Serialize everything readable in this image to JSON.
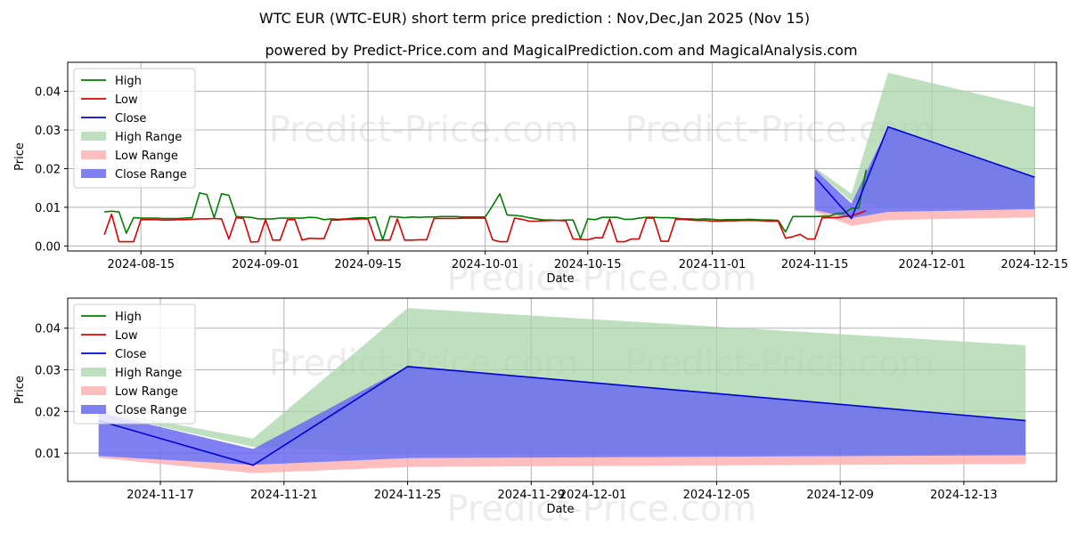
{
  "title": "WTC EUR (WTC-EUR) short term price prediction : Nov,Dec,Jan 2025 (Nov 15)",
  "subtitle": "powered by Predict-Price.com and MagicalPrediction.com and MagicalAnalysis.com",
  "watermark": "Predict-Price.com",
  "colors": {
    "high": "#008000",
    "low": "#dd0000",
    "close": "#0000dd",
    "high_range": "#a8d5a8",
    "low_range": "#ffb3b3",
    "close_range": "#6a6af0",
    "grid": "#b0b0b0"
  },
  "legend": [
    "High",
    "Low",
    "Close",
    "High Range",
    "Low Range",
    "Close Range"
  ],
  "chart_data": [
    {
      "type": "line",
      "panel": "top",
      "xlabel": "Date",
      "ylabel": "Price",
      "xlim": [
        "2024-08-05",
        "2024-12-18"
      ],
      "ylim": [
        -0.0013,
        0.0475
      ],
      "yticks": [
        0.0,
        0.01,
        0.02,
        0.03,
        0.04
      ],
      "ytick_labels": [
        "0.00",
        "0.01",
        "0.02",
        "0.03",
        "0.04"
      ],
      "xticks": [
        "2024-08-15",
        "2024-09-01",
        "2024-09-15",
        "2024-10-01",
        "2024-10-15",
        "2024-11-01",
        "2024-11-15",
        "2024-12-01",
        "2024-12-15"
      ],
      "xtick_labels": [
        "2024-08-15",
        "2024-09-01",
        "2024-09-15",
        "2024-10-01",
        "2024-10-15",
        "2024-11-01",
        "2024-11-15",
        "2024-12-01",
        "2024-12-15"
      ],
      "history": {
        "start": "2024-08-10",
        "high": [
          0.0088,
          0.009,
          0.0088,
          0.0033,
          0.0073,
          0.0072,
          0.0072,
          0.0072,
          0.0071,
          0.0071,
          0.0071,
          0.0072,
          0.0073,
          0.0137,
          0.0133,
          0.0073,
          0.0135,
          0.0131,
          0.0076,
          0.0075,
          0.0074,
          0.007,
          0.007,
          0.007,
          0.0072,
          0.0072,
          0.0072,
          0.0072,
          0.0074,
          0.0073,
          0.0068,
          0.007,
          0.0069,
          0.007,
          0.0072,
          0.0073,
          0.0072,
          0.0075,
          0.0016,
          0.0076,
          0.0075,
          0.0073,
          0.0075,
          0.0074,
          0.0075,
          0.0075,
          0.0076,
          0.0076,
          0.0076,
          0.0075,
          0.0075,
          0.0075,
          0.0075,
          0.0104,
          0.0135,
          0.008,
          0.0079,
          0.0077,
          0.0073,
          0.007,
          0.0067,
          0.0067,
          0.0066,
          0.0067,
          0.0067,
          0.0019,
          0.007,
          0.0068,
          0.0074,
          0.0074,
          0.0074,
          0.0069,
          0.0069,
          0.0072,
          0.0074,
          0.0074,
          0.0073,
          0.0073,
          0.0072,
          0.007,
          0.007,
          0.0069,
          0.007,
          0.0069,
          0.0067,
          0.0068,
          0.0068,
          0.0068,
          0.0069,
          0.0068,
          0.0067,
          0.0067,
          0.0066,
          0.0036,
          0.0076,
          0.0076,
          0.0076,
          0.0076,
          0.0077,
          0.0077,
          0.0084,
          0.0085,
          0.0097,
          0.0098,
          0.0197
        ],
        "low": [
          0.0029,
          0.0082,
          0.0011,
          0.0011,
          0.0011,
          0.0068,
          0.0068,
          0.0068,
          0.0067,
          0.0067,
          0.0068,
          0.0068,
          0.0069,
          0.007,
          0.007,
          0.0071,
          0.007,
          0.0018,
          0.0073,
          0.0071,
          0.001,
          0.0011,
          0.0068,
          0.0015,
          0.0015,
          0.0068,
          0.0068,
          0.0015,
          0.002,
          0.0019,
          0.0019,
          0.0067,
          0.0067,
          0.0069,
          0.0069,
          0.007,
          0.007,
          0.0015,
          0.0015,
          0.0015,
          0.007,
          0.0015,
          0.0015,
          0.0016,
          0.0016,
          0.0071,
          0.0071,
          0.0071,
          0.0071,
          0.0072,
          0.0072,
          0.0072,
          0.0072,
          0.0016,
          0.0011,
          0.0011,
          0.0072,
          0.0069,
          0.0064,
          0.0064,
          0.0065,
          0.0066,
          0.0066,
          0.0065,
          0.0018,
          0.0017,
          0.0016,
          0.0021,
          0.0021,
          0.007,
          0.0011,
          0.0011,
          0.0018,
          0.0018,
          0.0072,
          0.0072,
          0.0012,
          0.0012,
          0.0069,
          0.0069,
          0.0067,
          0.0066,
          0.0066,
          0.0064,
          0.0064,
          0.0065,
          0.0065,
          0.0066,
          0.0066,
          0.0066,
          0.0065,
          0.0064,
          0.0064,
          0.002,
          0.0024,
          0.003,
          0.0018,
          0.0018,
          0.0073,
          0.0073,
          0.0073,
          0.0076,
          0.0078,
          0.0084,
          0.0091
        ]
      },
      "forecast_dates": [
        "2024-11-15",
        "2024-11-20",
        "2024-11-25",
        "2024-12-15"
      ],
      "high_range_upper": [
        0.0203,
        0.0135,
        0.0448,
        0.0359
      ],
      "high_range_lower": [
        0.0197,
        0.0115,
        0.0098,
        0.0098
      ],
      "close_range_upper": [
        0.0198,
        0.011,
        0.0308,
        0.0178
      ],
      "close_range_lower": [
        0.0093,
        0.0072,
        0.0088,
        0.0095
      ],
      "low_range_upper": [
        0.0093,
        0.0072,
        0.0088,
        0.0095
      ],
      "low_range_lower": [
        0.0089,
        0.0052,
        0.0067,
        0.0074
      ],
      "close": [
        0.0178,
        0.0071,
        0.0308,
        0.0178
      ]
    },
    {
      "type": "line",
      "panel": "bottom",
      "xlabel": "Date",
      "ylabel": "Price",
      "xlim": [
        "2024-11-14",
        "2024-12-16"
      ],
      "ylim": [
        0.0032,
        0.0472
      ],
      "yticks": [
        0.01,
        0.02,
        0.03,
        0.04
      ],
      "ytick_labels": [
        "0.01",
        "0.02",
        "0.03",
        "0.04"
      ],
      "xticks": [
        "2024-11-17",
        "2024-11-21",
        "2024-11-25",
        "2024-11-29",
        "2024-12-01",
        "2024-12-05",
        "2024-12-09",
        "2024-12-13"
      ],
      "xtick_labels": [
        "2024-11-17",
        "2024-11-21",
        "2024-11-25",
        "2024-11-29",
        "2024-12-01",
        "2024-12-05",
        "2024-12-09",
        "2024-12-13"
      ],
      "forecast_dates": [
        "2024-11-15",
        "2024-11-20",
        "2024-11-25",
        "2024-12-15"
      ],
      "high_range_upper": [
        0.0203,
        0.0135,
        0.0448,
        0.0359
      ],
      "high_range_lower": [
        0.0197,
        0.0115,
        0.0098,
        0.0098
      ],
      "close_range_upper": [
        0.0198,
        0.011,
        0.0308,
        0.0178
      ],
      "close_range_lower": [
        0.0093,
        0.0072,
        0.0088,
        0.0095
      ],
      "low_range_upper": [
        0.0093,
        0.0072,
        0.0088,
        0.0095
      ],
      "low_range_lower": [
        0.0089,
        0.0052,
        0.0067,
        0.0074
      ],
      "close": [
        0.0178,
        0.0071,
        0.0308,
        0.0178
      ]
    }
  ]
}
